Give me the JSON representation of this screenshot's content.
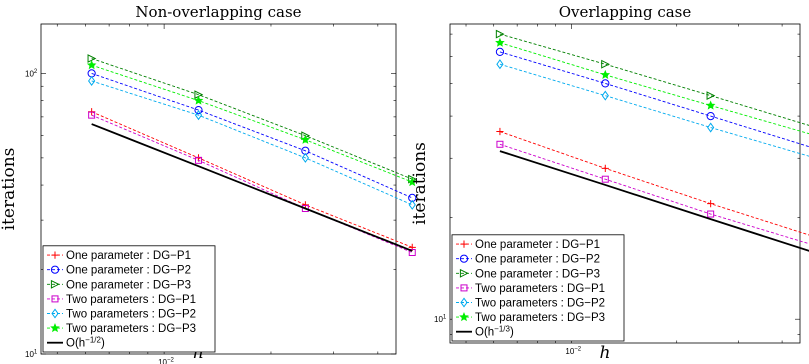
{
  "chart_data": [
    {
      "type": "line",
      "title": "Non-overlapping case",
      "xlabel": "h",
      "ylabel": "iterations",
      "xscale": "log",
      "yscale": "log",
      "xlim": [
        0.0045,
        0.045
      ],
      "ylim": [
        10,
        150
      ],
      "xticks": [
        {
          "value": 0.01,
          "base": "10",
          "exp": "−2"
        }
      ],
      "yticks": [
        {
          "value": 10,
          "base": "10",
          "exp": "1"
        },
        {
          "value": 100,
          "base": "10",
          "exp": "2"
        }
      ],
      "x": [
        0.00625,
        0.0125,
        0.025,
        0.05
      ],
      "legend_position": "lower-left",
      "series": [
        {
          "name": "One parameter : DG−P1",
          "color": "#ff0000",
          "marker": "plus",
          "values": [
            73,
            50,
            34,
            24
          ]
        },
        {
          "name": "One parameter : DG−P2",
          "color": "#0000ff",
          "marker": "circle",
          "values": [
            100,
            74,
            53,
            36
          ]
        },
        {
          "name": "One parameter : DG−P3",
          "color": "#008000",
          "marker": "triangle-right",
          "values": [
            113,
            84,
            60,
            42
          ]
        },
        {
          "name": "Two parameters : DG−P1",
          "color": "#cc00cc",
          "marker": "square",
          "values": [
            71,
            49,
            33,
            23
          ]
        },
        {
          "name": "Two parameters : DG−P2",
          "color": "#00aaee",
          "marker": "diamond",
          "values": [
            94,
            71,
            50,
            34
          ]
        },
        {
          "name": "Two parameters : DG−P3",
          "color": "#00ee00",
          "marker": "star",
          "values": [
            107,
            80,
            58,
            41
          ]
        },
        {
          "name": "O(h",
          "sup": "−1/2",
          "suffix": ")",
          "color": "#000000",
          "marker": "none",
          "solid": true,
          "values": [
            66,
            46.7,
            33,
            23.3
          ]
        }
      ]
    },
    {
      "type": "line",
      "title": "Overlapping case",
      "xlabel": "h",
      "ylabel": "iterations",
      "xscale": "log",
      "yscale": "log",
      "xlim": [
        0.0045,
        0.045
      ],
      "ylim": [
        8.5,
        75
      ],
      "xticks": [
        {
          "value": 0.01,
          "base": "10",
          "exp": "−2"
        }
      ],
      "yticks": [
        {
          "value": 10,
          "base": "10",
          "exp": "1"
        }
      ],
      "x": [
        0.00625,
        0.0125,
        0.025,
        0.05
      ],
      "legend_position": "lower-left",
      "series": [
        {
          "name": "One parameter : DG−P1",
          "color": "#ff0000",
          "marker": "plus",
          "values": [
            36,
            28,
            22,
            17.5
          ]
        },
        {
          "name": "One parameter : DG−P2",
          "color": "#0000ff",
          "marker": "circle",
          "values": [
            62,
            50,
            40,
            32
          ]
        },
        {
          "name": "One parameter : DG−P3",
          "color": "#008000",
          "marker": "triangle-right",
          "values": [
            70,
            57,
            46,
            37
          ]
        },
        {
          "name": "Two parameters : DG−P1",
          "color": "#cc00cc",
          "marker": "square",
          "values": [
            33,
            26,
            20.5,
            16.5
          ]
        },
        {
          "name": "Two parameters : DG−P2",
          "color": "#00aaee",
          "marker": "diamond",
          "values": [
            57,
            46,
            37,
            30
          ]
        },
        {
          "name": "Two parameters : DG−P3",
          "color": "#00ee00",
          "marker": "star",
          "values": [
            66,
            53,
            43,
            35
          ]
        },
        {
          "name": "O(h",
          "sup": "−1/3",
          "suffix": ")",
          "color": "#000000",
          "marker": "none",
          "solid": true,
          "values": [
            31.5,
            25,
            19.8,
            15.7
          ]
        }
      ]
    }
  ]
}
